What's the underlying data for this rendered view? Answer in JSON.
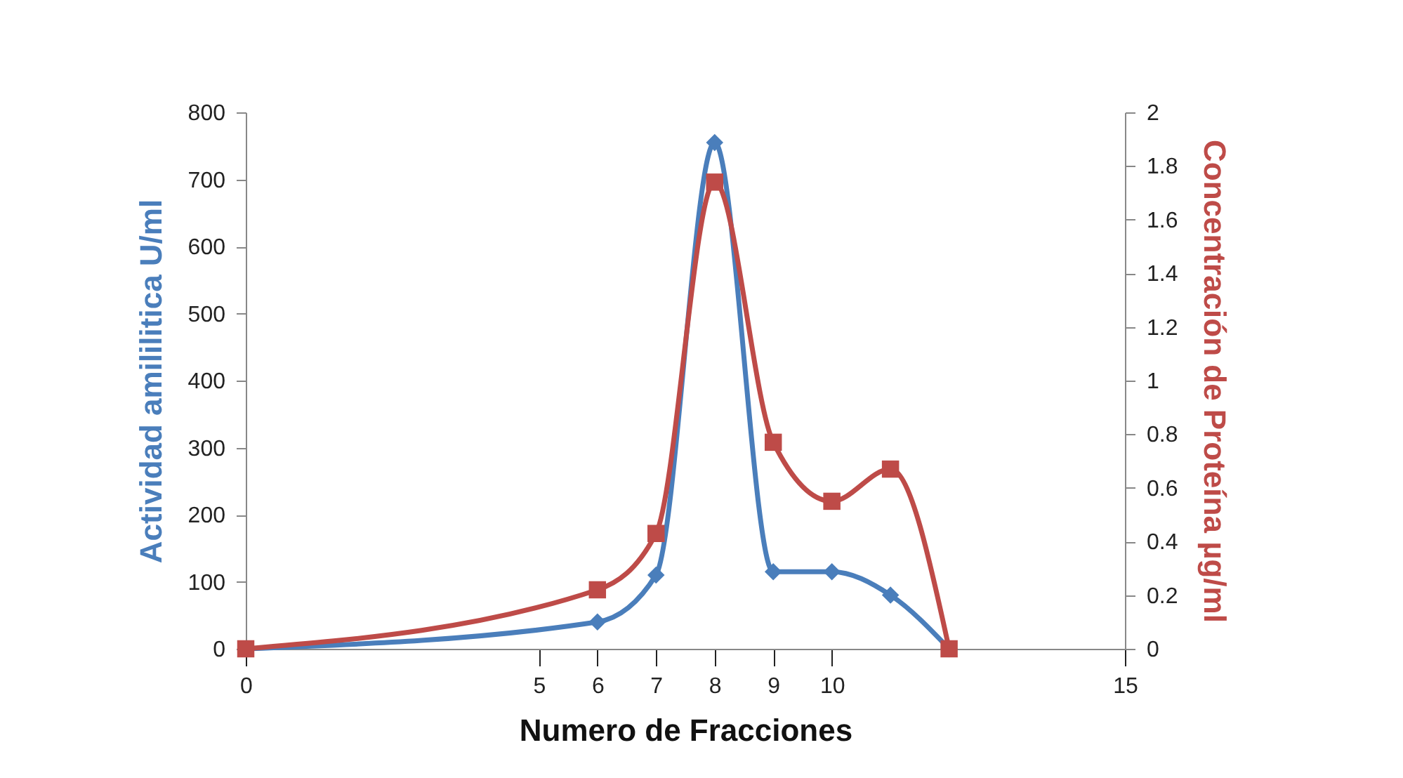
{
  "chart_data": {
    "type": "line",
    "xlabel": "Numero de Fracciones",
    "ylabel": "Actividad amililitica U/ml",
    "y2label": "Concentración de Proteína µg/ml",
    "xlim": [
      0,
      15
    ],
    "xticks": [
      0,
      5,
      6,
      7,
      8,
      9,
      10,
      15
    ],
    "ylim": [
      0,
      800
    ],
    "yticks": [
      0,
      100,
      200,
      300,
      400,
      500,
      600,
      700,
      800
    ],
    "y2lim": [
      0,
      2
    ],
    "y2ticks": [
      0,
      0.2,
      0.4,
      0.6,
      0.8,
      1,
      1.2,
      1.4,
      1.6,
      1.8,
      2
    ],
    "grid": false,
    "series": [
      {
        "color": "#4a7ebb",
        "marker": "diamond",
        "x": [
          0,
          6,
          7,
          8,
          9,
          10,
          11,
          12
        ],
        "values": [
          0,
          40,
          110,
          755,
          115,
          115,
          80,
          0
        ]
      },
      {
        "color": "#be4b48",
        "marker": "square",
        "axis": "y2",
        "x": [
          0,
          6,
          7,
          8,
          9,
          10,
          11,
          12
        ],
        "values": [
          0,
          0.22,
          0.43,
          1.74,
          0.77,
          0.55,
          0.67,
          0
        ]
      }
    ]
  }
}
